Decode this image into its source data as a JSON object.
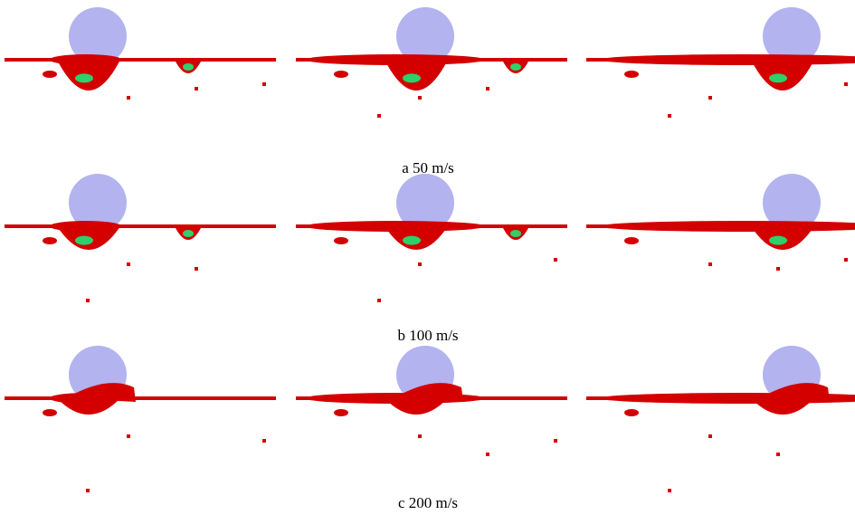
{
  "captions": [
    "a 50 m/s",
    "b 100 m/s",
    "c 200 m/s"
  ]
}
